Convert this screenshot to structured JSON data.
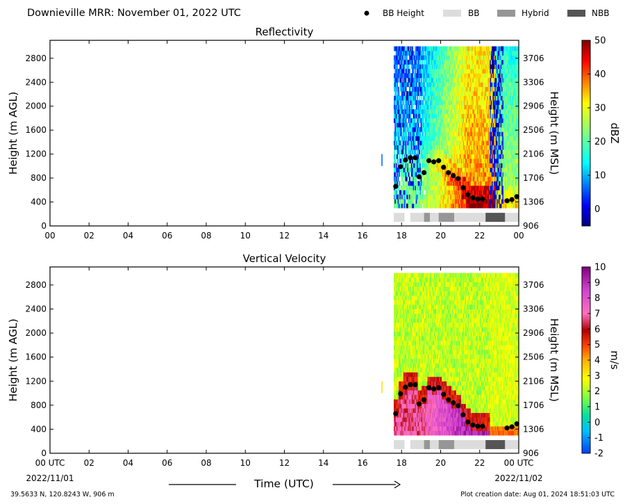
{
  "header": {
    "title": "Downieville MRR:  November 01, 2022 UTC",
    "legend": [
      {
        "label": "BB Height",
        "kind": "dot",
        "color": "#000000"
      },
      {
        "label": "BB",
        "kind": "rect",
        "color": "#dcdcdc"
      },
      {
        "label": "Hybrid",
        "kind": "rect",
        "color": "#969696"
      },
      {
        "label": "NBB",
        "kind": "rect",
        "color": "#555555"
      }
    ]
  },
  "footer": {
    "location": "39.5633 N, 120.8243 W, 906 m",
    "creation_date": "Plot creation date: Aug 01, 2024 18:51:03 UTC",
    "xlabel": "Time (UTC)",
    "start_date": "2022/11/01",
    "end_date": "2022/11/02"
  },
  "chart_data": [
    {
      "type": "heatmap",
      "title": "Reflectivity",
      "ylabel": "Height (m AGL)",
      "y2label": "Height (m MSL)",
      "xlim": [
        0,
        24
      ],
      "ylim": [
        0,
        3100
      ],
      "x_ticks": [
        "00",
        "02",
        "04",
        "06",
        "08",
        "10",
        "12",
        "14",
        "16",
        "18",
        "20",
        "22",
        "00"
      ],
      "y_ticks": [
        0,
        400,
        800,
        1200,
        1600,
        2000,
        2400,
        2800
      ],
      "y2_ticks": [
        906,
        1306,
        1706,
        2106,
        2506,
        2906,
        3306,
        3706
      ],
      "colorbar": {
        "label": "dBZ",
        "min": -5,
        "max": 50,
        "ticks": [
          0,
          10,
          20,
          30,
          40,
          50
        ],
        "scheme": "jet"
      },
      "data_time_range": [
        17.6,
        24
      ],
      "data_height_range": [
        300,
        3000
      ],
      "bb_height": [
        {
          "x": 17.7,
          "y": 660
        },
        {
          "x": 17.95,
          "y": 990
        },
        {
          "x": 18.2,
          "y": 1100
        },
        {
          "x": 18.45,
          "y": 1140
        },
        {
          "x": 18.7,
          "y": 1140
        },
        {
          "x": 18.9,
          "y": 820
        },
        {
          "x": 19.15,
          "y": 890
        },
        {
          "x": 19.4,
          "y": 1090
        },
        {
          "x": 19.65,
          "y": 1070
        },
        {
          "x": 19.9,
          "y": 1090
        },
        {
          "x": 20.15,
          "y": 980
        },
        {
          "x": 20.4,
          "y": 890
        },
        {
          "x": 20.65,
          "y": 840
        },
        {
          "x": 20.9,
          "y": 790
        },
        {
          "x": 21.15,
          "y": 640
        },
        {
          "x": 21.4,
          "y": 520
        },
        {
          "x": 21.65,
          "y": 470
        },
        {
          "x": 21.9,
          "y": 450
        },
        {
          "x": 22.15,
          "y": 450
        },
        {
          "x": 23.4,
          "y": 420
        },
        {
          "x": 23.65,
          "y": 440
        },
        {
          "x": 23.9,
          "y": 490
        }
      ],
      "bb_type": [
        {
          "start": 17.6,
          "end": 18.15,
          "type": "BB"
        },
        {
          "start": 18.45,
          "end": 19.15,
          "type": "BB"
        },
        {
          "start": 19.15,
          "end": 19.45,
          "type": "Hybrid"
        },
        {
          "start": 19.45,
          "end": 19.9,
          "type": "BB"
        },
        {
          "start": 19.9,
          "end": 20.7,
          "type": "Hybrid"
        },
        {
          "start": 20.7,
          "end": 22.3,
          "type": "BB"
        },
        {
          "start": 22.3,
          "end": 23.3,
          "type": "NBB"
        },
        {
          "start": 23.3,
          "end": 24.0,
          "type": "BB"
        }
      ]
    },
    {
      "type": "heatmap",
      "title": "Vertical Velocity",
      "ylabel": "Height (m AGL)",
      "y2label": "Height (m MSL)",
      "xlabel": "Time (UTC)",
      "xlim": [
        0,
        24
      ],
      "ylim": [
        0,
        3100
      ],
      "x_ticks": [
        "00 UTC",
        "02",
        "04",
        "06",
        "08",
        "10",
        "12",
        "14",
        "16",
        "18",
        "20",
        "22",
        "00 UTC"
      ],
      "y_ticks": [
        0,
        400,
        800,
        1200,
        1600,
        2000,
        2400,
        2800
      ],
      "y2_ticks": [
        906,
        1306,
        1706,
        2106,
        2506,
        2906,
        3306,
        3706
      ],
      "colorbar": {
        "label": "m/s",
        "min": -2,
        "max": 10,
        "ticks": [
          -2,
          -1,
          0,
          1,
          2,
          3,
          4,
          5,
          6,
          7,
          8,
          9,
          10
        ],
        "scheme": "velocity"
      },
      "data_time_range": [
        17.6,
        24
      ],
      "data_height_range": [
        300,
        3000
      ],
      "bb_height": [
        {
          "x": 17.7,
          "y": 660
        },
        {
          "x": 17.95,
          "y": 990
        },
        {
          "x": 18.2,
          "y": 1100
        },
        {
          "x": 18.45,
          "y": 1140
        },
        {
          "x": 18.7,
          "y": 1140
        },
        {
          "x": 18.9,
          "y": 820
        },
        {
          "x": 19.15,
          "y": 890
        },
        {
          "x": 19.4,
          "y": 1090
        },
        {
          "x": 19.65,
          "y": 1070
        },
        {
          "x": 19.9,
          "y": 1090
        },
        {
          "x": 20.15,
          "y": 980
        },
        {
          "x": 20.4,
          "y": 890
        },
        {
          "x": 20.65,
          "y": 840
        },
        {
          "x": 20.9,
          "y": 790
        },
        {
          "x": 21.15,
          "y": 640
        },
        {
          "x": 21.4,
          "y": 520
        },
        {
          "x": 21.65,
          "y": 470
        },
        {
          "x": 21.9,
          "y": 450
        },
        {
          "x": 22.15,
          "y": 450
        },
        {
          "x": 23.4,
          "y": 420
        },
        {
          "x": 23.65,
          "y": 440
        },
        {
          "x": 23.9,
          "y": 490
        }
      ],
      "bb_type": [
        {
          "start": 17.6,
          "end": 18.15,
          "type": "BB"
        },
        {
          "start": 18.45,
          "end": 19.15,
          "type": "BB"
        },
        {
          "start": 19.15,
          "end": 19.45,
          "type": "Hybrid"
        },
        {
          "start": 19.45,
          "end": 19.9,
          "type": "BB"
        },
        {
          "start": 19.9,
          "end": 20.7,
          "type": "Hybrid"
        },
        {
          "start": 20.7,
          "end": 22.3,
          "type": "BB"
        },
        {
          "start": 22.3,
          "end": 23.3,
          "type": "NBB"
        },
        {
          "start": 23.3,
          "end": 24.0,
          "type": "BB"
        }
      ]
    }
  ]
}
